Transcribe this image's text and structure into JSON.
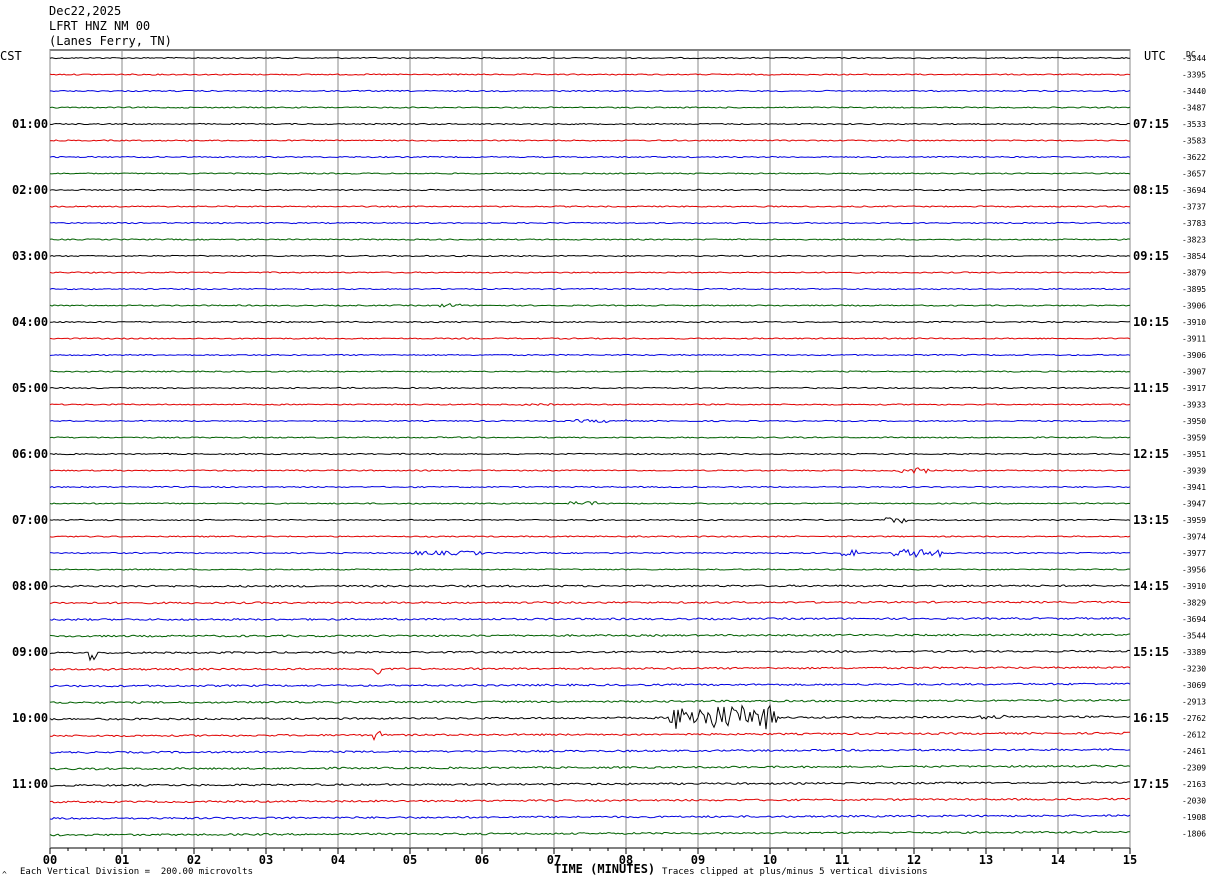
{
  "header": {
    "date": "Dec22,2025",
    "station": "LFRT HNZ NM 00",
    "location": "(Lanes Ferry, TN)"
  },
  "left_tz": "CST",
  "right_tz": "UTC",
  "dc_label": "DC",
  "footer": {
    "vertical_division": "Each Vertical Division =  200.00 microvolts",
    "xlabel": "TIME (MINUTES)",
    "clip_note": "Traces clipped at plus/minus 5 vertical divisions",
    "corner_mark": "^"
  },
  "colors": {
    "traces": [
      "#000000",
      "#e00000",
      "#0000e0",
      "#006000"
    ],
    "grid": "#888888"
  },
  "chart_data": {
    "type": "line",
    "title": "LFRT HNZ NM 00 (Lanes Ferry, TN) Dec22,2025",
    "xlabel": "TIME (MINUTES)",
    "xlim": [
      0,
      15
    ],
    "x_ticks": [
      "00",
      "01",
      "02",
      "03",
      "04",
      "05",
      "06",
      "07",
      "08",
      "09",
      "10",
      "11",
      "12",
      "13",
      "14",
      "15"
    ],
    "rows_per_hour": 4,
    "row_count": 48,
    "left_hour_labels": [
      "01:00",
      "02:00",
      "03:00",
      "04:00",
      "05:00",
      "06:00",
      "07:00",
      "08:00",
      "09:00",
      "10:00",
      "11:00"
    ],
    "right_hour_labels": [
      "07:15",
      "08:15",
      "09:15",
      "10:15",
      "11:15",
      "12:15",
      "13:15",
      "14:15",
      "15:15",
      "16:15",
      "17:15"
    ],
    "dc_offsets": [
      "-3344",
      "-3395",
      "-3440",
      "-3487",
      "-3533",
      "-3583",
      "-3622",
      "-3657",
      "-3694",
      "-3737",
      "-3783",
      "-3823",
      "-3854",
      "-3879",
      "-3895",
      "-3906",
      "-3910",
      "-3911",
      "-3906",
      "-3907",
      "-3917",
      "-3933",
      "-3950",
      "-3959",
      "-3951",
      "-3939",
      "-3941",
      "-3947",
      "-3959",
      "-3974",
      "-3977",
      "-3956",
      "-3910",
      "-3829",
      "-3694",
      "-3544",
      "-3389",
      "-3230",
      "-3069",
      "-2913",
      "-2762",
      "-2612",
      "-2461",
      "-2309",
      "-2163",
      "-2030",
      "-1908",
      "-1806"
    ],
    "units": "microvolts",
    "vertical_division_microvolts": 200,
    "clip_divisions": 5,
    "events": [
      {
        "row": 15,
        "minute_start": 5.4,
        "minute_end": 5.7,
        "amplitude": 2
      },
      {
        "row": 21,
        "minute_start": 6.5,
        "minute_end": 7.0,
        "amplitude": 1
      },
      {
        "row": 22,
        "minute_start": 7.3,
        "minute_end": 8.0,
        "amplitude": 1.5
      },
      {
        "row": 25,
        "minute_start": 11.8,
        "minute_end": 12.2,
        "amplitude": 3
      },
      {
        "row": 27,
        "minute_start": 7.2,
        "minute_end": 7.6,
        "amplitude": 2
      },
      {
        "row": 28,
        "minute_start": 11.6,
        "minute_end": 11.9,
        "amplitude": 3
      },
      {
        "row": 30,
        "minute_start": 5.0,
        "minute_end": 6.0,
        "amplitude": 2
      },
      {
        "row": 30,
        "minute_start": 11.7,
        "minute_end": 12.4,
        "amplitude": 4
      },
      {
        "row": 30,
        "minute_start": 11.0,
        "minute_end": 11.2,
        "amplitude": 3
      },
      {
        "row": 36,
        "minute_start": 0.55,
        "minute_end": 0.65,
        "amplitude": 8
      },
      {
        "row": 37,
        "minute_start": 4.5,
        "minute_end": 4.6,
        "amplitude": 8
      },
      {
        "row": 40,
        "minute_start": 8.6,
        "minute_end": 10.1,
        "amplitude": 12
      },
      {
        "row": 40,
        "minute_start": 12.9,
        "minute_end": 13.3,
        "amplitude": 2
      },
      {
        "row": 41,
        "minute_start": 4.5,
        "minute_end": 4.6,
        "amplitude": 5
      }
    ]
  }
}
